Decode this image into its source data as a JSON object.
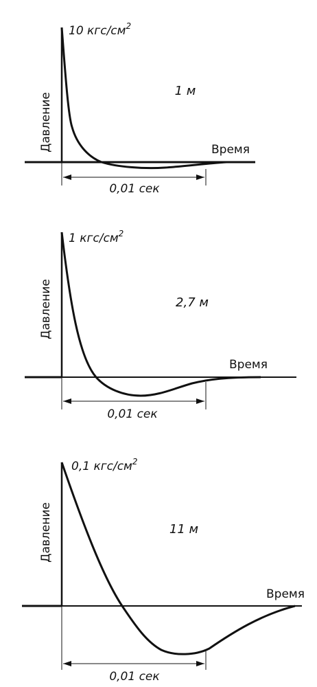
{
  "panels": [
    {
      "peak_pressure": "10 кгс/см",
      "pressure_unit_exp": "2",
      "distance": "1 м",
      "y_axis_label": "Давление",
      "x_axis_label": "Время",
      "duration": "0,01 сек"
    },
    {
      "peak_pressure": "1 кгс/см",
      "pressure_unit_exp": "2",
      "distance": "2,7 м",
      "y_axis_label": "Давление",
      "x_axis_label": "Время",
      "duration": "0,01 сек"
    },
    {
      "peak_pressure": "0,1 кгс/см",
      "pressure_unit_exp": "2",
      "distance": "11 м",
      "y_axis_label": "Давление",
      "x_axis_label": "Время",
      "duration": "0,01 сек"
    }
  ],
  "colors": {
    "ink": "#111111",
    "background": "#ffffff"
  }
}
